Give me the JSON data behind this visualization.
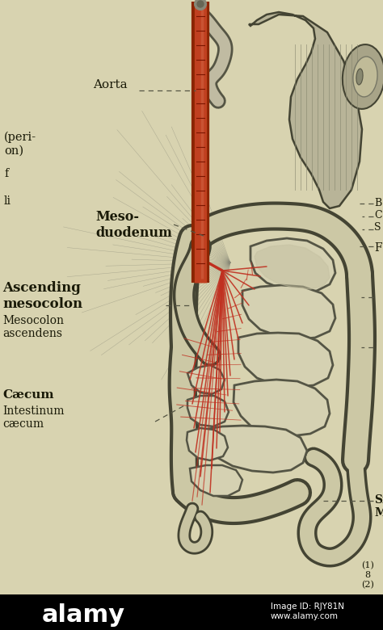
{
  "background_color": "#d8d3b0",
  "labels": {
    "aorta": "Aorta",
    "mesoduodenum": "Meso-\nduodenum",
    "ascending_mesocolon_bold": "Ascending\nmesocolon",
    "ascending_mesocolon_latin": "Mesocolon\nascendens",
    "caecum_bold": "Cæcum",
    "caecum_latin": "Intestinum\ncæcum",
    "peri_label": "(peri-\non)",
    "f_label": "f",
    "li_label": "li",
    "si_label": "Si\nM",
    "b_label": "B\nC\nS",
    "f2_label": "F",
    "page_num": "(1)\n8\n(2)",
    "alamy": "alamy",
    "image_id": "Image ID: RJY81N\nwww.alamy.com"
  },
  "colors": {
    "aorta_dark": "#8B2500",
    "aorta_bright": "#c04020",
    "vessel_red": "#c03020",
    "organ_fill": "#c8c4a0",
    "organ_outline": "#444433",
    "intestine_fill": "#d8d4b4",
    "intestine_outline": "#555544",
    "mesentery_fill": "#c8c3a0",
    "text_dark": "#1a1a08",
    "dashed_line": "#555544",
    "background_parchment": "#d8d3b0",
    "watermark_black": "#000000",
    "watermark_text": "#ffffff",
    "shading_dark": "#888877",
    "shading_light": "#b0ab90"
  },
  "figure_width": 4.74,
  "figure_height": 7.8,
  "dpi": 100
}
